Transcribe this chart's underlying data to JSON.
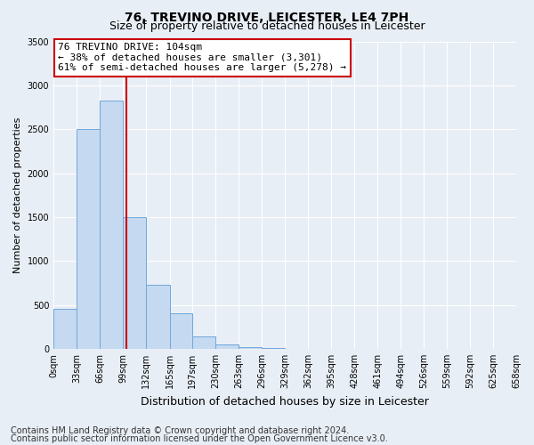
{
  "title": "76, TREVINO DRIVE, LEICESTER, LE4 7PH",
  "subtitle": "Size of property relative to detached houses in Leicester",
  "xlabel": "Distribution of detached houses by size in Leicester",
  "ylabel": "Number of detached properties",
  "bar_values": [
    460,
    2500,
    2830,
    1500,
    730,
    400,
    140,
    55,
    20,
    5,
    2,
    1,
    0,
    0,
    0,
    0,
    0,
    0,
    0,
    0
  ],
  "bin_edges": [
    0,
    33,
    66,
    99,
    132,
    165,
    197,
    230,
    263,
    296,
    329,
    362,
    395,
    428,
    461,
    494,
    526,
    559,
    592,
    625,
    658
  ],
  "bar_color": "#c5d9f0",
  "bar_edge_color": "#6fa8dc",
  "vline_x": 104,
  "vline_color": "#cc0000",
  "annotation_line1": "76 TREVINO DRIVE: 104sqm",
  "annotation_line2": "← 38% of detached houses are smaller (3,301)",
  "annotation_line3": "61% of semi-detached houses are larger (5,278) →",
  "annotation_box_color": "#ffffff",
  "annotation_box_edge": "#cc0000",
  "ylim": [
    0,
    3500
  ],
  "yticks": [
    0,
    500,
    1000,
    1500,
    2000,
    2500,
    3000,
    3500
  ],
  "tick_labels": [
    "0sqm",
    "33sqm",
    "66sqm",
    "99sqm",
    "132sqm",
    "165sqm",
    "197sqm",
    "230sqm",
    "263sqm",
    "296sqm",
    "329sqm",
    "362sqm",
    "395sqm",
    "428sqm",
    "461sqm",
    "494sqm",
    "526sqm",
    "559sqm",
    "592sqm",
    "625sqm",
    "658sqm"
  ],
  "footer_line1": "Contains HM Land Registry data © Crown copyright and database right 2024.",
  "footer_line2": "Contains public sector information licensed under the Open Government Licence v3.0.",
  "bg_color": "#e8eef5",
  "plot_bg_color": "#e8eef5",
  "title_fontsize": 10,
  "subtitle_fontsize": 9,
  "xlabel_fontsize": 9,
  "ylabel_fontsize": 8,
  "tick_fontsize": 7,
  "footer_fontsize": 7,
  "annotation_fontsize": 8
}
